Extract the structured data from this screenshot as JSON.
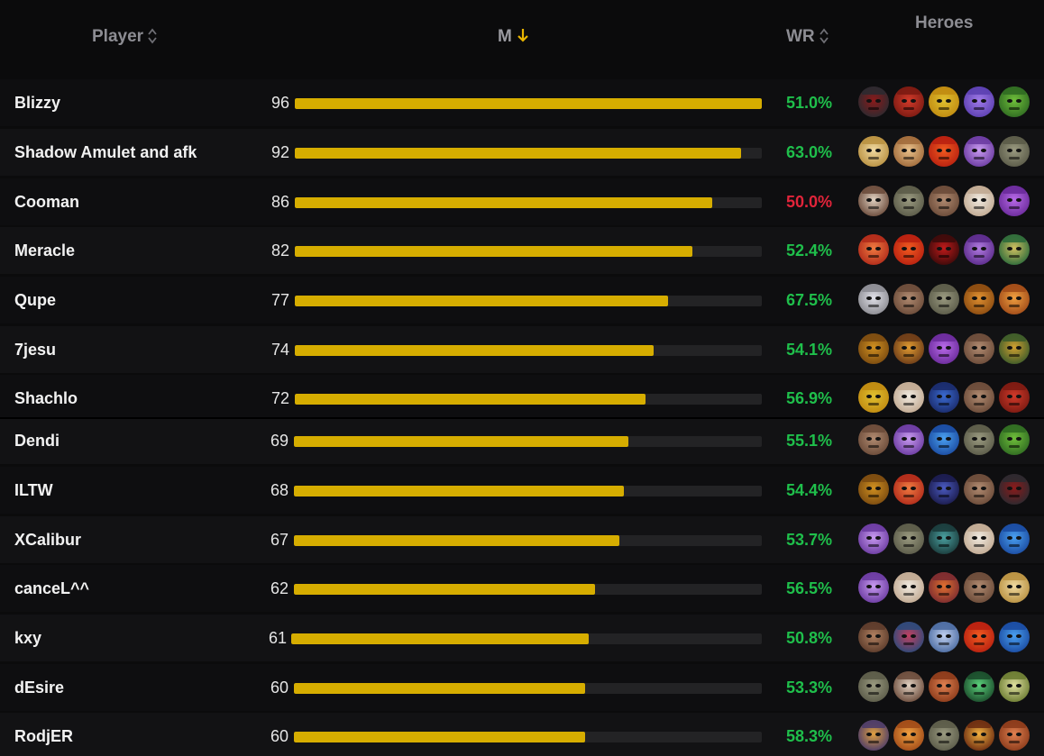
{
  "header": {
    "player_label": "Player",
    "m_label": "M",
    "wr_label": "WR",
    "heroes_label": "Heroes"
  },
  "colors": {
    "bar_fill": "#d6ad00",
    "bar_track": "#232325",
    "wr_positive": "#1fbf4b",
    "wr_even": "#e1243a",
    "header_text": "#8d8d93",
    "sort_arrow_active": "#e8b400"
  },
  "bar_max": 96,
  "rows": [
    {
      "player": "Blizzy",
      "m": "96",
      "m_value": 96,
      "wr": "51.0%",
      "wr_status": "positive",
      "heroes": [
        "doom-icon",
        "axe-icon",
        "juggernaut-icon",
        "void-icon",
        "venomancer-icon"
      ]
    },
    {
      "player": "Shadow Amulet and afk",
      "m": "92",
      "m_value": 92,
      "wr": "63.0%",
      "wr_status": "positive",
      "heroes": [
        "keeper-of-the-light-icon",
        "invoker-icon",
        "ember-spirit-icon",
        "faceless-icon",
        "tiny-icon"
      ]
    },
    {
      "player": "Cooman",
      "m": "86",
      "m_value": 86,
      "wr": "50.0%",
      "wr_status": "even",
      "heroes": [
        "tinker-icon",
        "tiny-icon",
        "pudge-icon",
        "zeus-icon",
        "faceless-void-icon"
      ]
    },
    {
      "player": "Meracle",
      "m": "82",
      "m_value": 82,
      "wr": "52.4%",
      "wr_status": "positive",
      "heroes": [
        "lina-icon",
        "ember-spirit-icon",
        "shadow-fiend-icon",
        "bane-icon",
        "rubick-icon"
      ]
    },
    {
      "player": "Qupe",
      "m": "77",
      "m_value": 77,
      "wr": "67.5%",
      "wr_status": "positive",
      "heroes": [
        "lycan-icon",
        "pudge-icon",
        "tiny-icon",
        "brewmaster-icon",
        "windranger-icon"
      ]
    },
    {
      "player": "7jesu",
      "m": "74",
      "m_value": 74,
      "wr": "54.1%",
      "wr_status": "positive",
      "heroes": [
        "alchemist-icon",
        "clinkz-icon",
        "faceless-void-icon",
        "pudge-icon",
        "gyrocopter-icon"
      ]
    },
    {
      "player": "Shachlo",
      "m": "72",
      "m_value": 72,
      "wr": "56.9%",
      "wr_status": "positive",
      "heroes": [
        "juggernaut-icon",
        "zeus-icon",
        "night-stalker-icon",
        "pudge-icon",
        "axe-icon"
      ]
    },
    {
      "player": "Dendi",
      "m": "69",
      "m_value": 69,
      "wr": "55.1%",
      "wr_status": "positive",
      "heroes": [
        "pudge-icon",
        "faceless-icon",
        "morphling-icon",
        "tiny-icon",
        "venomancer-icon"
      ]
    },
    {
      "player": "ILTW",
      "m": "68",
      "m_value": 68,
      "wr": "54.4%",
      "wr_status": "positive",
      "heroes": [
        "alchemist-icon",
        "lina-icon",
        "templar-icon",
        "pudge-icon",
        "doom-icon"
      ]
    },
    {
      "player": "XCalibur",
      "m": "67",
      "m_value": 67,
      "wr": "53.7%",
      "wr_status": "positive",
      "heroes": [
        "faceless-icon",
        "tiny-icon",
        "spectre-icon",
        "zeus-icon",
        "morphling-icon"
      ]
    },
    {
      "player": "canceL^^",
      "m": "62",
      "m_value": 62,
      "wr": "56.5%",
      "wr_status": "positive",
      "heroes": [
        "faceless-icon",
        "zeus-icon",
        "batrider-icon",
        "pudge-icon",
        "keeper-of-the-light-icon"
      ]
    },
    {
      "player": "kxy",
      "m": "61",
      "m_value": 61,
      "wr": "50.8%",
      "wr_status": "positive",
      "heroes": [
        "kunkka-icon",
        "slark-icon",
        "vengeful-icon",
        "ember-spirit-icon",
        "morphling-icon"
      ]
    },
    {
      "player": "dEsire",
      "m": "60",
      "m_value": 60,
      "wr": "53.3%",
      "wr_status": "positive",
      "heroes": [
        "tiny-icon",
        "tinker-icon",
        "marci-icon",
        "necrophos-icon",
        "enchantress-icon"
      ]
    },
    {
      "player": "RodjER",
      "m": "60",
      "m_value": 60,
      "wr": "58.3%",
      "wr_status": "positive",
      "heroes": [
        "dark-willow-icon",
        "windranger-icon",
        "tiny-icon",
        "phoenix-icon",
        "marci-icon"
      ]
    }
  ]
}
